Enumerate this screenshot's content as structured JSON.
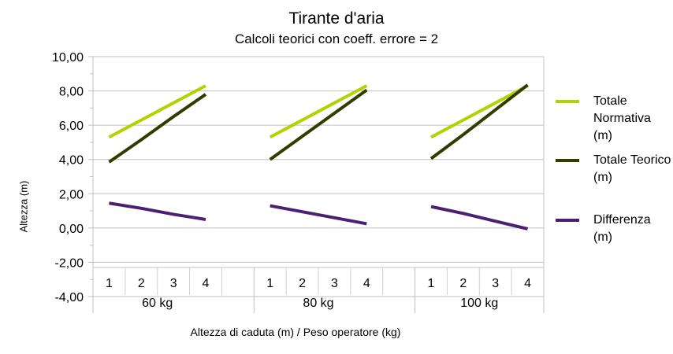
{
  "chart_data": {
    "type": "line",
    "title": "Tirante d'aria",
    "subtitle": "Calcoli teorici con coeff. errore = 2",
    "xlabel": "Altezza di caduta (m) / Peso operatore (kg)",
    "ylabel": "Altezza (m)",
    "ylim": [
      -4,
      10
    ],
    "yticks": [
      "10,00",
      "8,00",
      "6,00",
      "4,00",
      "2,00",
      "0,00",
      "-2,00",
      "-4,00"
    ],
    "grid": true,
    "legend_position": "right",
    "groups": [
      {
        "label": "60 kg",
        "categories": [
          "1",
          "2",
          "3",
          "4"
        ]
      },
      {
        "label": "80 kg",
        "categories": [
          "1",
          "2",
          "3",
          "4"
        ]
      },
      {
        "label": "100 kg",
        "categories": [
          "1",
          "2",
          "3",
          "4"
        ]
      }
    ],
    "series": [
      {
        "name": "Totale Normativa (m)",
        "color": "#b4d200",
        "values": [
          [
            5.3,
            6.3,
            7.3,
            8.3
          ],
          [
            5.3,
            6.3,
            7.3,
            8.3
          ],
          [
            5.3,
            6.3,
            7.3,
            8.3
          ]
        ]
      },
      {
        "name": "Totale Teorico (m)",
        "color": "#2f3e00",
        "values": [
          [
            3.85,
            5.15,
            6.5,
            7.8
          ],
          [
            4.0,
            5.35,
            6.7,
            8.05
          ],
          [
            4.05,
            5.45,
            6.9,
            8.35
          ]
        ]
      },
      {
        "name": "Differenza (m)",
        "color": "#4b2073",
        "values": [
          [
            1.45,
            1.15,
            0.8,
            0.5
          ],
          [
            1.3,
            0.95,
            0.6,
            0.25
          ],
          [
            1.25,
            0.85,
            0.4,
            -0.05
          ]
        ]
      }
    ]
  }
}
